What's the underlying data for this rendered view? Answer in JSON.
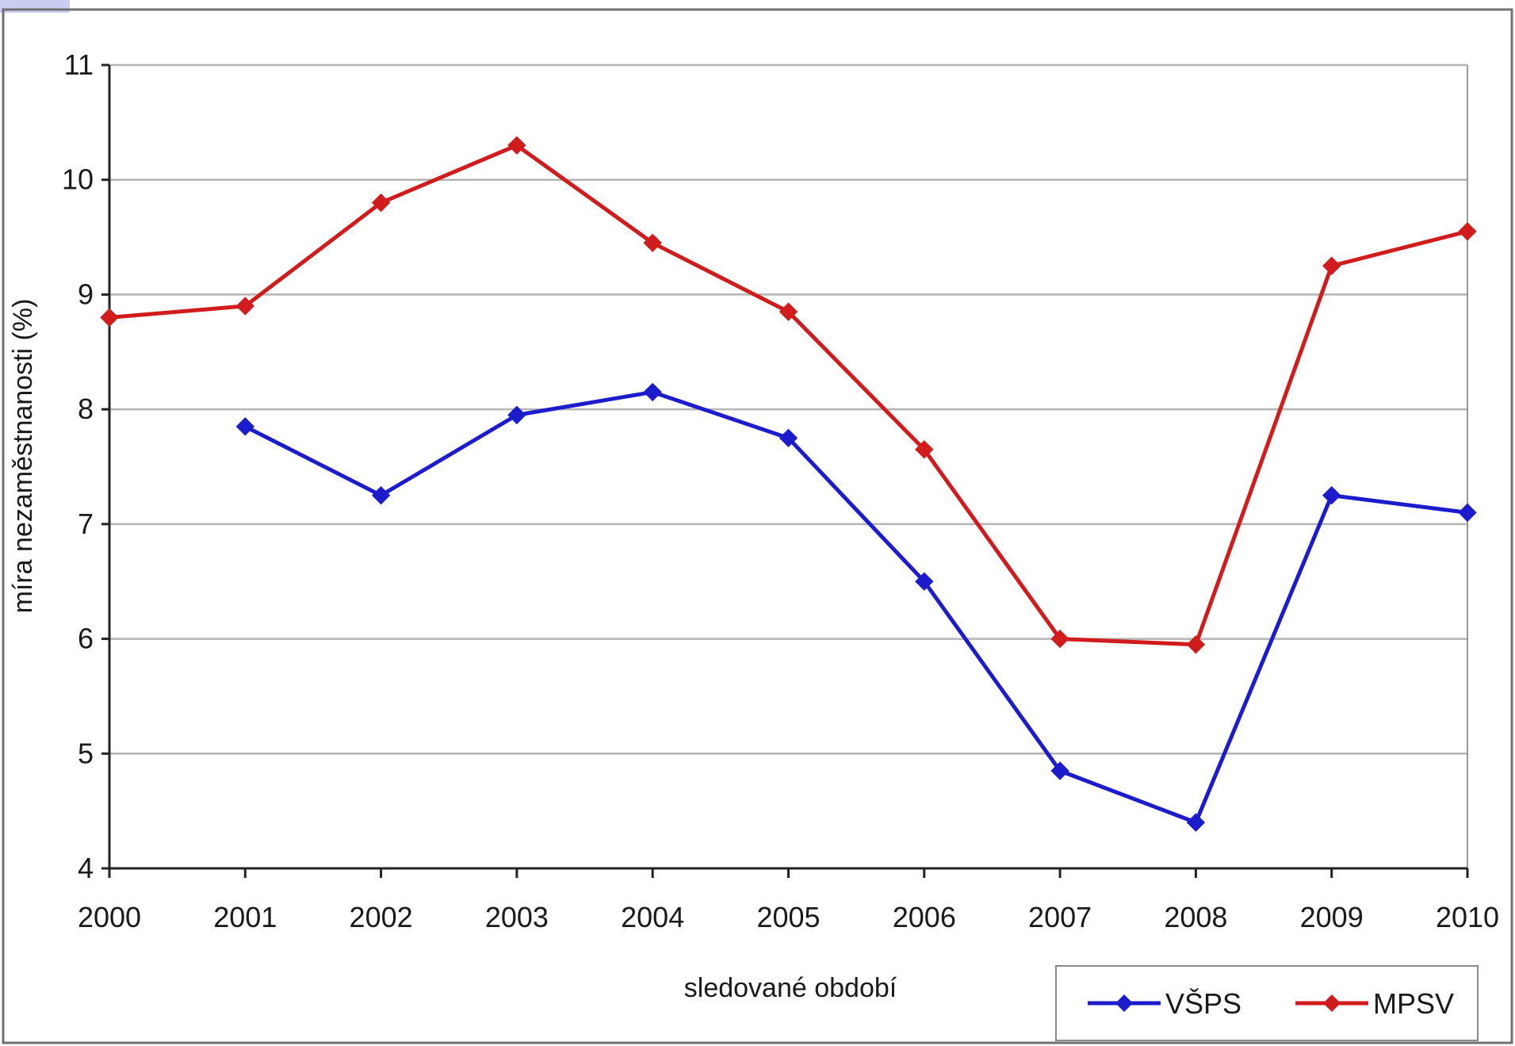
{
  "chart_data": {
    "type": "line",
    "title": "",
    "xlabel": "sledované období",
    "ylabel": "míra nezaměstnanosti (%)",
    "ylim": [
      4,
      11
    ],
    "y_ticks": [
      "4",
      "5",
      "6",
      "7",
      "8",
      "9",
      "10",
      "11"
    ],
    "categories": [
      "2000",
      "2001",
      "2002",
      "2003",
      "2004",
      "2005",
      "2006",
      "2007",
      "2008",
      "2009",
      "2010"
    ],
    "grid": "horizontal",
    "legend_position": "bottom-right",
    "series": [
      {
        "name": "VŠPS",
        "color": "#1c1ccc",
        "marker": "diamond",
        "values": [
          null,
          7.85,
          7.25,
          7.95,
          8.15,
          7.75,
          6.5,
          4.85,
          4.4,
          7.25,
          7.1
        ]
      },
      {
        "name": "MPSV",
        "color": "#d01c1c",
        "marker": "diamond",
        "values": [
          8.8,
          8.9,
          9.8,
          10.3,
          9.45,
          8.85,
          7.65,
          6.0,
          5.95,
          9.25,
          9.55
        ]
      }
    ]
  }
}
